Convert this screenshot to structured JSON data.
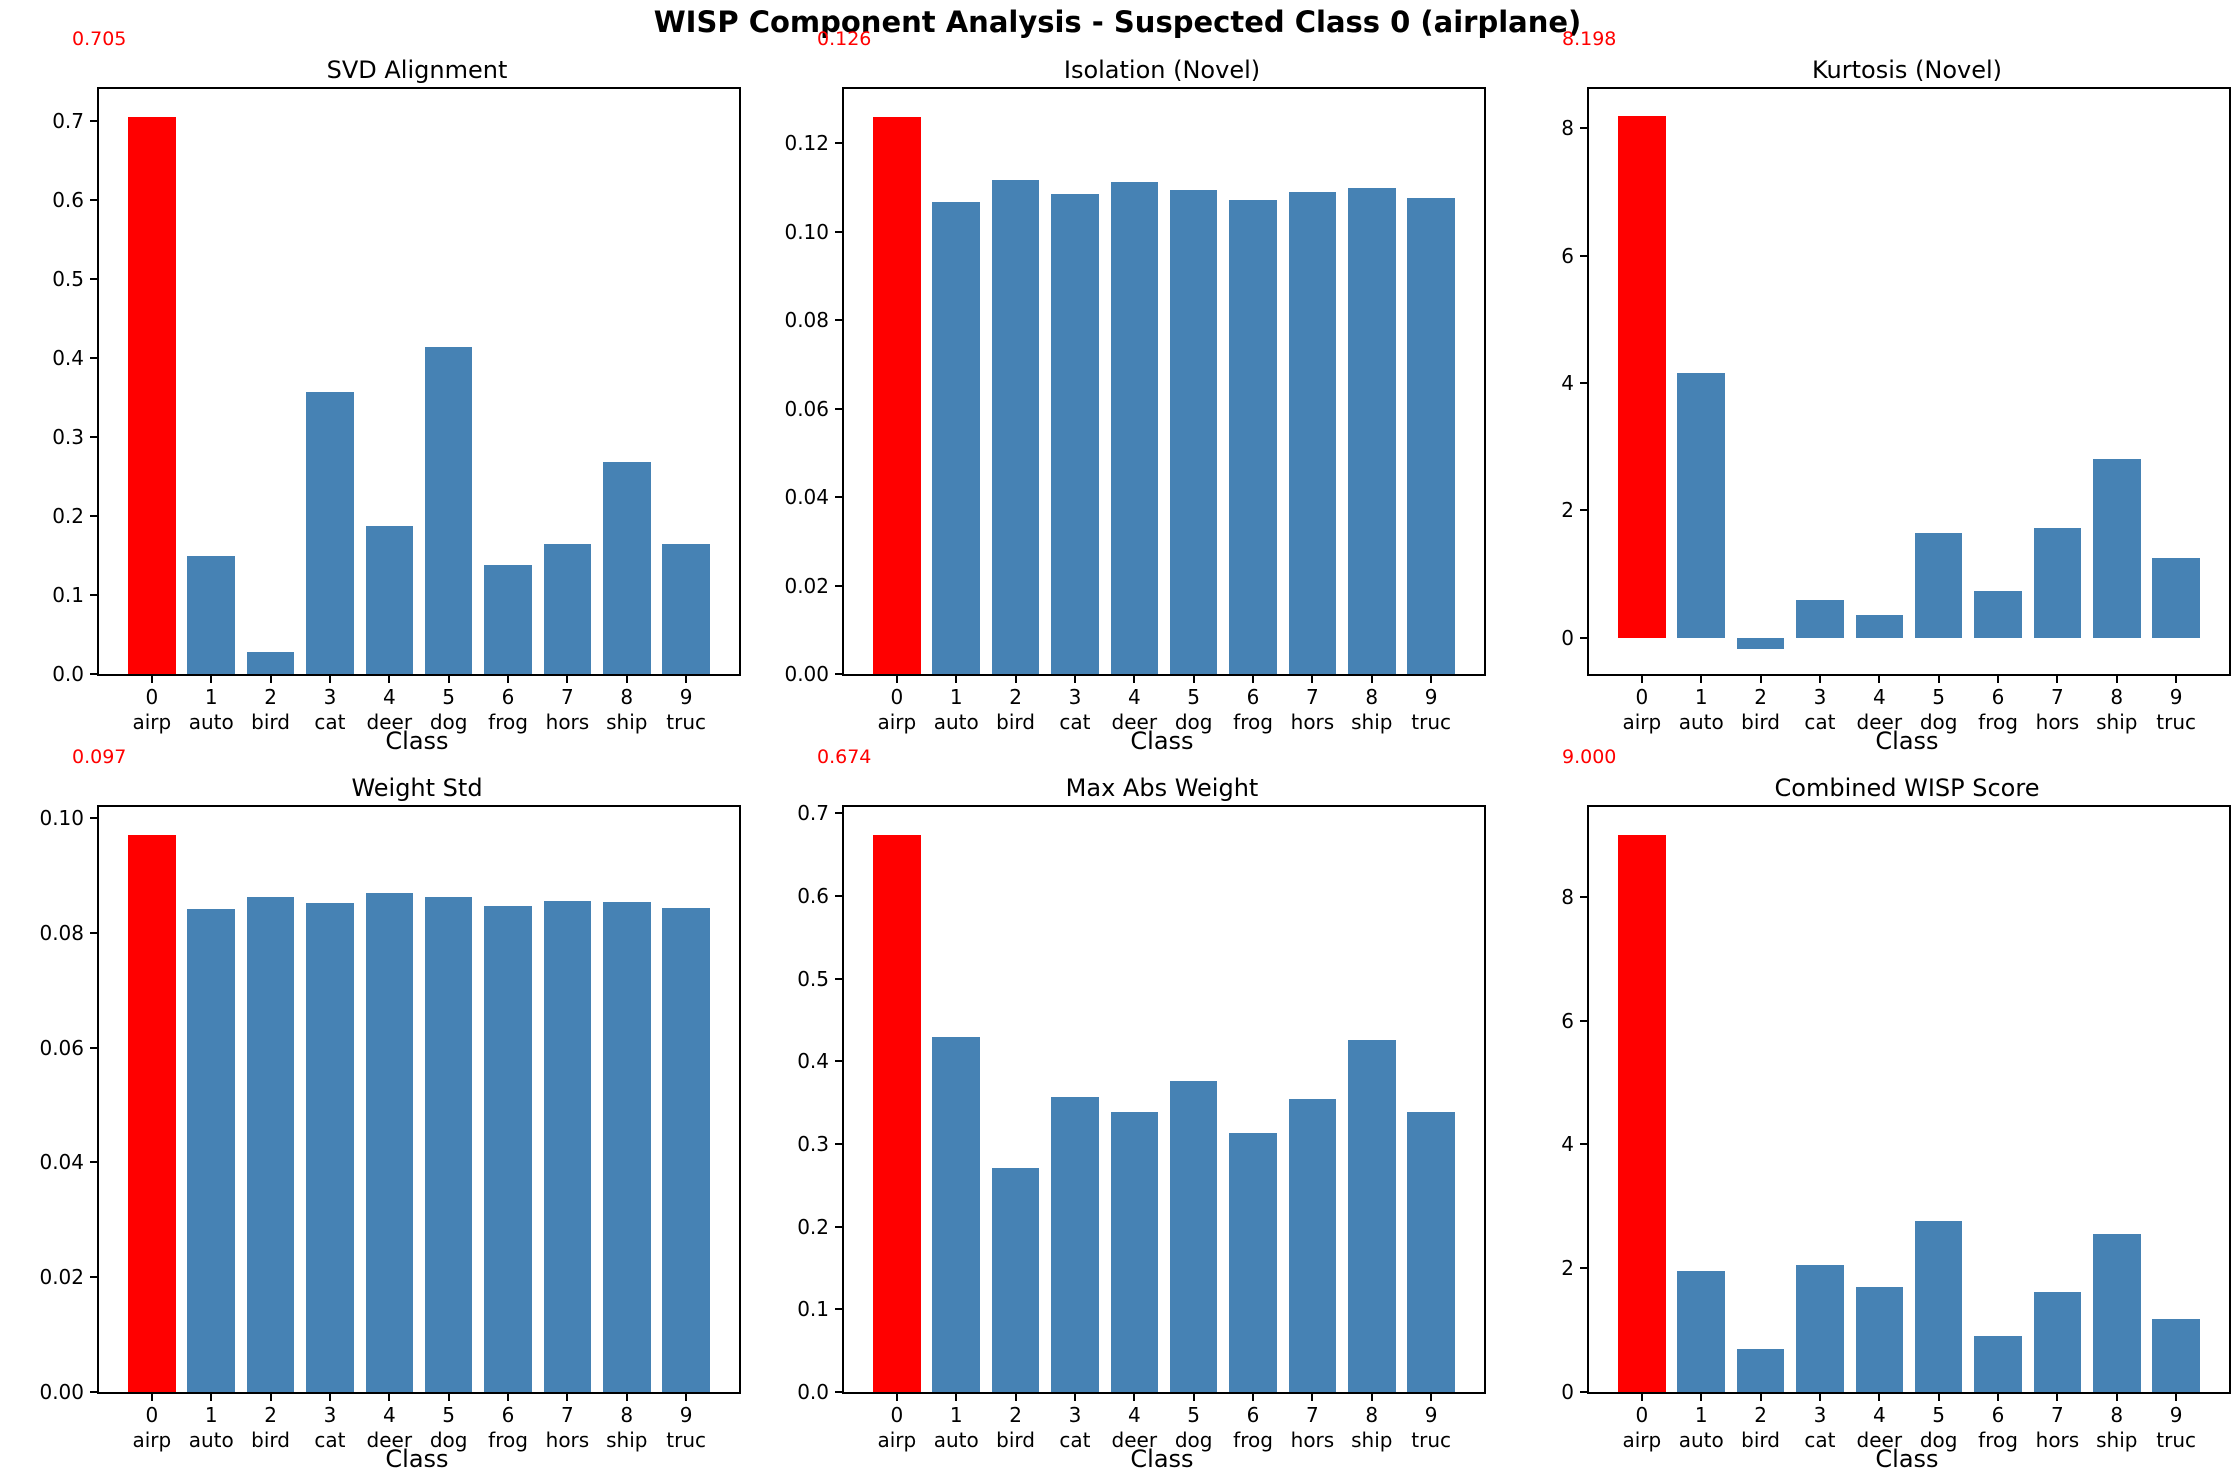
{
  "figure": {
    "title": "WISP Component Analysis - Suspected Class 0 (airplane)"
  },
  "colors": {
    "highlight": "#ff0000",
    "bar": "#4682b4",
    "text": "#000000",
    "annotation": "#ff0000"
  },
  "categories": [
    {
      "num": "0",
      "name": "airp"
    },
    {
      "num": "1",
      "name": "auto"
    },
    {
      "num": "2",
      "name": "bird"
    },
    {
      "num": "3",
      "name": "cat"
    },
    {
      "num": "4",
      "name": "deer"
    },
    {
      "num": "5",
      "name": "dog"
    },
    {
      "num": "6",
      "name": "frog"
    },
    {
      "num": "7",
      "name": "hors"
    },
    {
      "num": "8",
      "name": "ship"
    },
    {
      "num": "9",
      "name": "truc"
    }
  ],
  "chart_data": [
    {
      "type": "bar",
      "title": "SVD Alignment",
      "annotation": "0.705",
      "xlabel": "Class",
      "ylabel": "",
      "grid": false,
      "legend": false,
      "highlight_index": 0,
      "ylim": [
        0,
        0.7403
      ],
      "yticks": [
        {
          "value": 0.0,
          "label": "0.0"
        },
        {
          "value": 0.1,
          "label": "0.1"
        },
        {
          "value": 0.2,
          "label": "0.2"
        },
        {
          "value": 0.3,
          "label": "0.3"
        },
        {
          "value": 0.4,
          "label": "0.4"
        },
        {
          "value": 0.5,
          "label": "0.5"
        },
        {
          "value": 0.6,
          "label": "0.6"
        },
        {
          "value": 0.7,
          "label": "0.7"
        }
      ],
      "values": [
        0.705,
        0.149,
        0.028,
        0.357,
        0.187,
        0.414,
        0.138,
        0.165,
        0.268,
        0.165
      ]
    },
    {
      "type": "bar",
      "title": "Isolation (Novel)",
      "annotation": "0.126",
      "xlabel": "Class",
      "ylabel": "",
      "grid": false,
      "legend": false,
      "highlight_index": 0,
      "ylim": [
        0,
        0.1323
      ],
      "yticks": [
        {
          "value": 0.0,
          "label": "0.00"
        },
        {
          "value": 0.02,
          "label": "0.02"
        },
        {
          "value": 0.04,
          "label": "0.04"
        },
        {
          "value": 0.06,
          "label": "0.06"
        },
        {
          "value": 0.08,
          "label": "0.08"
        },
        {
          "value": 0.1,
          "label": "0.10"
        },
        {
          "value": 0.12,
          "label": "0.12"
        }
      ],
      "values": [
        0.126,
        0.1068,
        0.1117,
        0.1085,
        0.1113,
        0.1094,
        0.1071,
        0.109,
        0.1099,
        0.1077
      ]
    },
    {
      "type": "bar",
      "title": "Kurtosis (Novel)",
      "annotation": "8.198",
      "xlabel": "Class",
      "ylabel": "",
      "grid": false,
      "legend": false,
      "highlight_index": 0,
      "ylim": [
        -0.567,
        8.615
      ],
      "yticks": [
        {
          "value": 0,
          "label": "0"
        },
        {
          "value": 2,
          "label": "2"
        },
        {
          "value": 4,
          "label": "4"
        },
        {
          "value": 6,
          "label": "6"
        },
        {
          "value": 8,
          "label": "8"
        }
      ],
      "values": [
        8.198,
        4.16,
        -0.18,
        0.6,
        0.36,
        1.64,
        0.73,
        1.72,
        2.8,
        1.25
      ]
    },
    {
      "type": "bar",
      "title": "Weight Std",
      "annotation": "0.097",
      "xlabel": "Class",
      "ylabel": "",
      "grid": false,
      "legend": false,
      "highlight_index": 0,
      "ylim": [
        0,
        0.1019
      ],
      "yticks": [
        {
          "value": 0.0,
          "label": "0.00"
        },
        {
          "value": 0.02,
          "label": "0.02"
        },
        {
          "value": 0.04,
          "label": "0.04"
        },
        {
          "value": 0.06,
          "label": "0.06"
        },
        {
          "value": 0.08,
          "label": "0.08"
        },
        {
          "value": 0.1,
          "label": "0.10"
        }
      ],
      "values": [
        0.097,
        0.0842,
        0.0863,
        0.0851,
        0.0869,
        0.0862,
        0.0847,
        0.0856,
        0.0853,
        0.0843
      ]
    },
    {
      "type": "bar",
      "title": "Max Abs Weight",
      "annotation": "0.674",
      "xlabel": "Class",
      "ylabel": "",
      "grid": false,
      "legend": false,
      "highlight_index": 0,
      "ylim": [
        0,
        0.7077
      ],
      "yticks": [
        {
          "value": 0.0,
          "label": "0.0"
        },
        {
          "value": 0.1,
          "label": "0.1"
        },
        {
          "value": 0.2,
          "label": "0.2"
        },
        {
          "value": 0.3,
          "label": "0.3"
        },
        {
          "value": 0.4,
          "label": "0.4"
        },
        {
          "value": 0.5,
          "label": "0.5"
        },
        {
          "value": 0.6,
          "label": "0.6"
        },
        {
          "value": 0.7,
          "label": "0.7"
        }
      ],
      "values": [
        0.674,
        0.43,
        0.271,
        0.357,
        0.339,
        0.376,
        0.313,
        0.354,
        0.426,
        0.339
      ]
    },
    {
      "type": "bar",
      "title": "Combined WISP Score",
      "annotation": "9.000",
      "xlabel": "Class",
      "ylabel": "",
      "grid": false,
      "legend": false,
      "highlight_index": 0,
      "ylim": [
        0,
        9.45
      ],
      "yticks": [
        {
          "value": 0,
          "label": "0"
        },
        {
          "value": 2,
          "label": "2"
        },
        {
          "value": 4,
          "label": "4"
        },
        {
          "value": 6,
          "label": "6"
        },
        {
          "value": 8,
          "label": "8"
        }
      ],
      "values": [
        9.0,
        1.95,
        0.69,
        2.05,
        1.69,
        2.77,
        0.9,
        1.61,
        2.56,
        1.18
      ]
    }
  ]
}
